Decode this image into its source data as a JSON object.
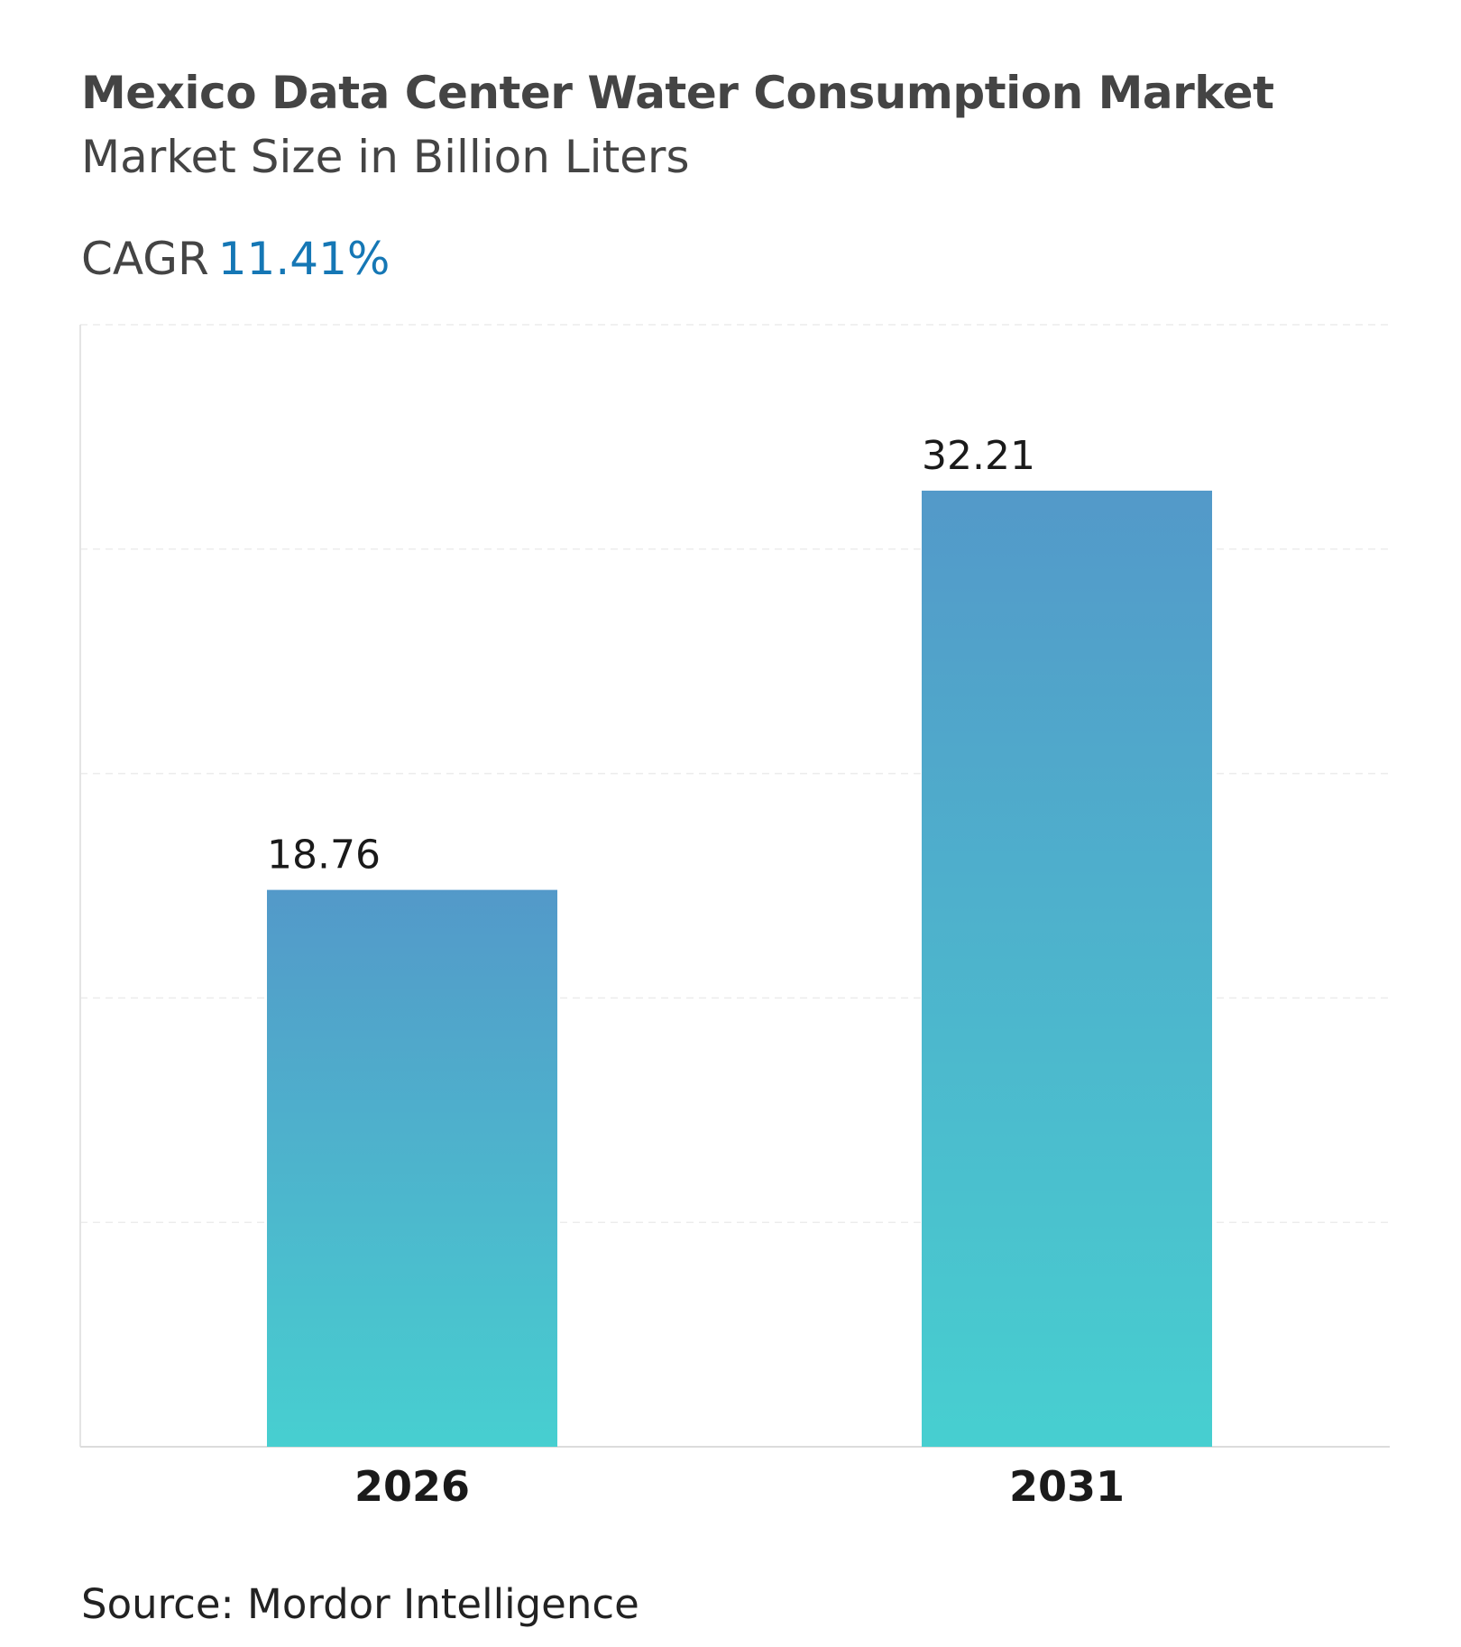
{
  "header": {
    "title": "Mexico Data Center Water Consumption Market",
    "subtitle": "Market Size in Billion Liters",
    "cagr_label": "CAGR",
    "cagr_value": "11.41%"
  },
  "footer": {
    "source": "Source: Mordor Intelligence"
  },
  "colors": {
    "bar_top": "#5399c9",
    "bar_bottom": "#47cfd0",
    "cagr": "#1577b5",
    "title": "#444444"
  },
  "chart_data": {
    "type": "bar",
    "categories": [
      "2026",
      "2031"
    ],
    "values": [
      18.76,
      32.21
    ],
    "data_labels": [
      "18.76",
      "32.21"
    ],
    "title": "Mexico Data Center Water Consumption Market",
    "subtitle": "Market Size in Billion Liters",
    "xlabel": "",
    "ylabel": "",
    "ylim": [
      0,
      37.8
    ],
    "grid": true,
    "legend": "none"
  }
}
